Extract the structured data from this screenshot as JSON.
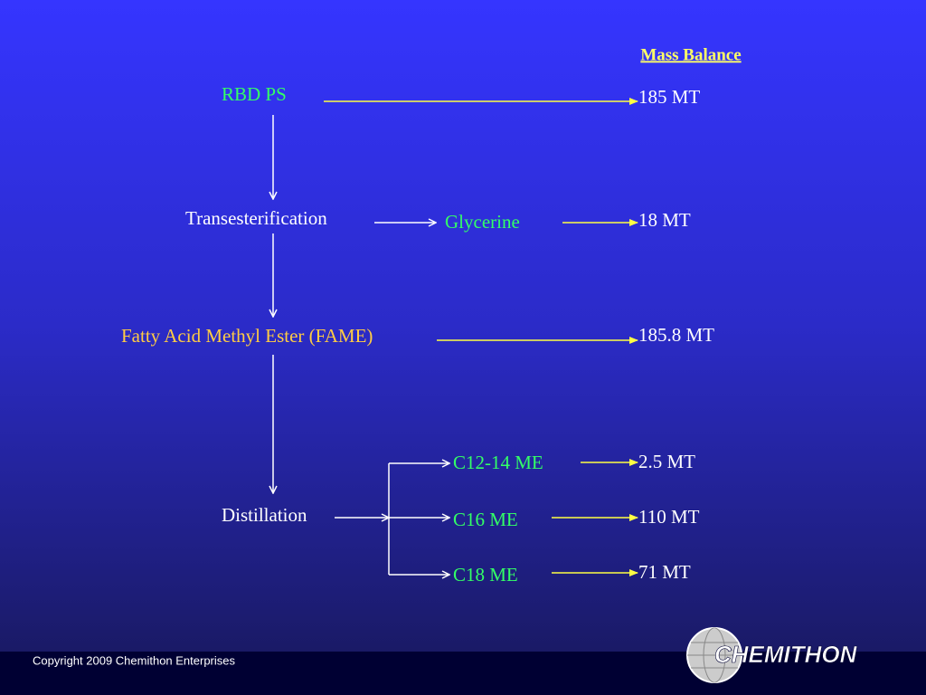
{
  "title": "Mass Balance",
  "nodes": [
    {
      "label": "RBD PS",
      "balance": "185 MT"
    },
    {
      "label": "Transesterification"
    },
    {
      "label": "Glycerine",
      "balance": "18 MT"
    },
    {
      "label": "Fatty Acid Methyl Ester (FAME)",
      "balance": "185.8 MT"
    },
    {
      "label": "Distillation"
    },
    {
      "label": "C12-14 ME",
      "balance": "2.5 MT"
    },
    {
      "label": "C16 ME",
      "balance": "110 MT"
    },
    {
      "label": "C18 ME",
      "balance": "71 MT"
    }
  ],
  "footer": {
    "copyright": "Copyright 2009 Chemithon Enterprises",
    "logo": "CHEMITHON"
  }
}
